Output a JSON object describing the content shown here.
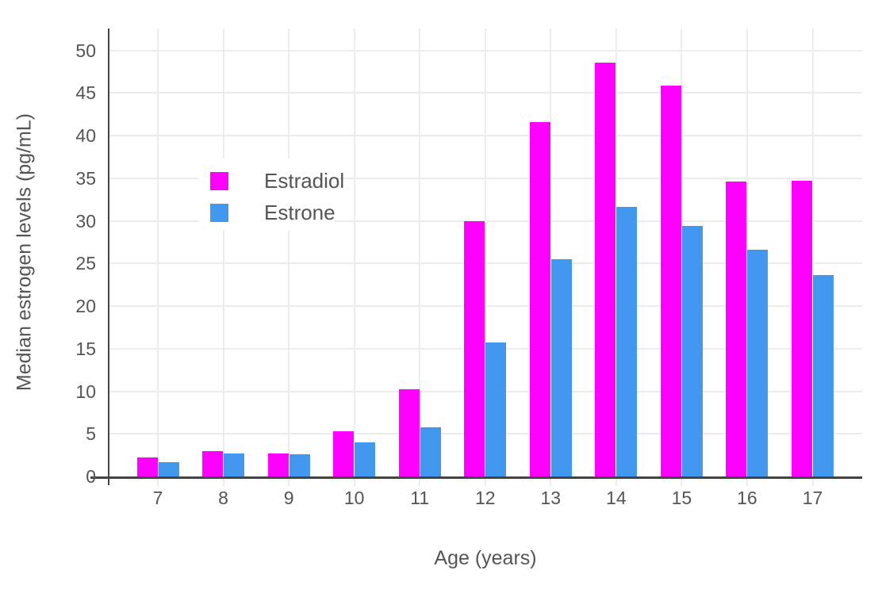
{
  "chart_data": {
    "type": "bar",
    "title": "",
    "xlabel": "Age (years)",
    "ylabel": "Median estrogen levels (pg/mL)",
    "categories": [
      "7",
      "8",
      "9",
      "10",
      "11",
      "12",
      "13",
      "14",
      "15",
      "16",
      "17"
    ],
    "series": [
      {
        "name": "Estradiol",
        "color": "#ff00ff",
        "values": [
          2.2,
          3.0,
          2.7,
          5.3,
          10.2,
          30.0,
          41.6,
          48.6,
          45.9,
          34.6,
          34.7
        ]
      },
      {
        "name": "Estrone",
        "color": "#4298ee",
        "values": [
          1.7,
          2.7,
          2.6,
          4.0,
          5.8,
          15.7,
          25.5,
          31.6,
          29.4,
          26.6,
          23.6
        ]
      }
    ],
    "yticks": [
      0,
      5,
      10,
      15,
      20,
      25,
      30,
      35,
      40,
      45,
      50
    ],
    "ylim": [
      0,
      52.5
    ],
    "grid": true,
    "legend_position": "inside-top-left",
    "colors": {
      "axis_line": "#444444",
      "gridline": "#ececec",
      "text": "#555555",
      "background": "#ffffff"
    }
  }
}
